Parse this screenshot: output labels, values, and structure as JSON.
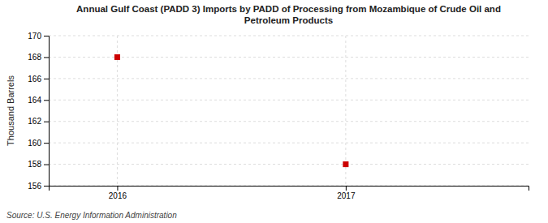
{
  "chart_data": {
    "type": "scatter",
    "title": "Annual Gulf Coast (PADD 3) Imports by PADD of Processing from Mozambique of Crude Oil and\nPetroleum Products",
    "ylabel": "Thousand Barrels",
    "source": "Source: U.S. Energy Information Administration",
    "x": [
      2016,
      2017
    ],
    "values": [
      168,
      158
    ],
    "color": "#cc0000",
    "marker": "square",
    "xlim": [
      2015.7,
      2017.8
    ],
    "xticks": [
      2016,
      2017
    ],
    "ylim": [
      156,
      170
    ],
    "yticks": [
      156,
      158,
      160,
      162,
      164,
      166,
      168,
      170
    ],
    "grid": true
  }
}
